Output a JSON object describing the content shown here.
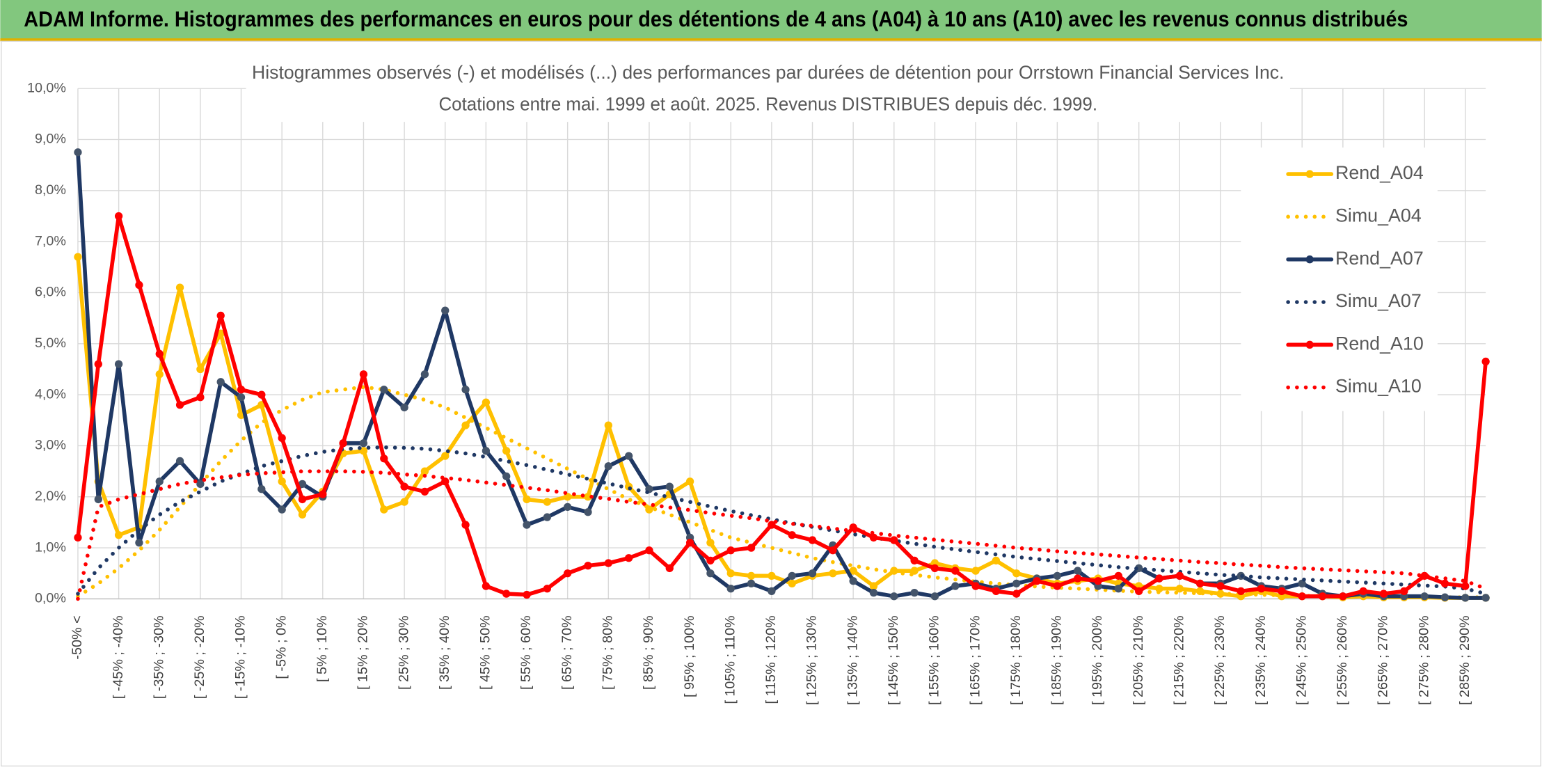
{
  "header": {
    "title": "ADAM Informe. Histogrammes des performances en euros pour des détentions de 4 ans (A04) à 10 ans (A10) avec les revenus connus distribués"
  },
  "chart_data": {
    "type": "line",
    "title": "Histogrammes observés (-) et modélisés (...) des performances par durées de détention pour Orrstown Financial Services Inc.",
    "subtitle": "Cotations entre mai. 1999 et août. 2025. Revenus DISTRIBUES depuis déc. 1999.",
    "categories": [
      "-50% <",
      null,
      "[ -45% ; -40%",
      null,
      "[ -35% ; -30%",
      null,
      "[ -25% ; -20%",
      null,
      "[ -15% ; -10%",
      null,
      "[ -5% ; 0%",
      null,
      "[ 5% ; 10%",
      null,
      "[ 15% ; 20%",
      null,
      "[ 25% ; 30%",
      null,
      "[ 35% ; 40%",
      null,
      "[ 45% ; 50%",
      null,
      "[ 55% ; 60%",
      null,
      "[ 65% ; 70%",
      null,
      "[ 75% ; 80%",
      null,
      "[ 85% ; 90%",
      null,
      "[ 95% ; 100%",
      null,
      "[ 105% ; 110%",
      null,
      "[ 115% ; 120%",
      null,
      "[ 125% ; 130%",
      null,
      "[ 135% ; 140%",
      null,
      "[ 145% ; 150%",
      null,
      "[ 155% ; 160%",
      null,
      "[ 165% ; 170%",
      null,
      "[ 175% ; 180%",
      null,
      "[ 185% ; 190%",
      null,
      "[ 195% ; 200%",
      null,
      "[ 205% ; 210%",
      null,
      "[ 215% ; 220%",
      null,
      "[ 225% ; 230%",
      null,
      "[ 235% ; 240%",
      null,
      "[ 245% ; 250%",
      null,
      "[ 255% ; 260%",
      null,
      "[ 265% ; 270%",
      null,
      "[ 275% ; 280%",
      null,
      "[ 285% ; 290%",
      null
    ],
    "series": [
      {
        "name": "Rend_A04",
        "color": "#FFC000",
        "style": "solid",
        "values": [
          6.7,
          2.3,
          1.25,
          1.4,
          4.4,
          6.1,
          4.5,
          5.2,
          3.6,
          3.8,
          2.3,
          1.65,
          2.1,
          2.85,
          2.9,
          1.75,
          1.9,
          2.5,
          2.8,
          3.4,
          3.85,
          2.9,
          1.95,
          1.9,
          2.0,
          2.0,
          3.4,
          2.2,
          1.75,
          2.05,
          2.3,
          1.1,
          0.5,
          0.45,
          0.45,
          0.3,
          0.45,
          0.5,
          0.55,
          0.25,
          0.55,
          0.55,
          0.7,
          0.6,
          0.55,
          0.75,
          0.5,
          0.4,
          0.3,
          0.35,
          0.4,
          0.3,
          0.25,
          0.2,
          0.2,
          0.15,
          0.1,
          0.05,
          0.15,
          0.05,
          0.05,
          0.05,
          0.03,
          0.05,
          0.03,
          0.03,
          0.03,
          0.02,
          0.02,
          0.02
        ]
      },
      {
        "name": "Simu_A04",
        "color": "#FFC000",
        "style": "dotted",
        "values": [
          0.05,
          0.3,
          0.6,
          0.95,
          1.35,
          1.8,
          2.25,
          2.7,
          3.1,
          3.45,
          3.7,
          3.9,
          4.05,
          4.1,
          4.15,
          4.1,
          4.0,
          3.9,
          3.75,
          3.55,
          3.35,
          3.15,
          2.95,
          2.75,
          2.55,
          2.35,
          2.15,
          1.95,
          1.8,
          1.65,
          1.5,
          1.35,
          1.2,
          1.1,
          1.0,
          0.9,
          0.8,
          0.72,
          0.65,
          0.58,
          0.52,
          0.47,
          0.42,
          0.38,
          0.34,
          0.3,
          0.27,
          0.24,
          0.22,
          0.2,
          0.18,
          0.16,
          0.14,
          0.13,
          0.12,
          0.11,
          0.1,
          0.09,
          0.08,
          0.07,
          0.06,
          0.06,
          0.05,
          0.05,
          0.04,
          0.04,
          0.04,
          0.03,
          0.03,
          0.03
        ]
      },
      {
        "name": "Rend_A07",
        "color": "#1F3864",
        "style": "solid",
        "values": [
          8.75,
          1.95,
          4.6,
          1.1,
          2.3,
          2.7,
          2.25,
          4.25,
          3.95,
          2.15,
          1.75,
          2.25,
          2.0,
          3.05,
          3.05,
          4.1,
          3.75,
          4.4,
          5.65,
          4.1,
          2.9,
          2.4,
          1.45,
          1.6,
          1.8,
          1.7,
          2.6,
          2.8,
          2.15,
          2.2,
          1.2,
          0.5,
          0.2,
          0.3,
          0.15,
          0.45,
          0.5,
          1.05,
          0.35,
          0.12,
          0.05,
          0.12,
          0.05,
          0.25,
          0.3,
          0.2,
          0.3,
          0.4,
          0.45,
          0.55,
          0.25,
          0.2,
          0.6,
          0.4,
          0.45,
          0.3,
          0.3,
          0.45,
          0.25,
          0.2,
          0.3,
          0.1,
          0.05,
          0.1,
          0.05,
          0.05,
          0.05,
          0.03,
          0.02,
          0.02
        ]
      },
      {
        "name": "Simu_A07",
        "color": "#1F3864",
        "style": "dotted",
        "values": [
          0.1,
          0.6,
          1.0,
          1.35,
          1.65,
          1.9,
          2.1,
          2.3,
          2.45,
          2.6,
          2.7,
          2.8,
          2.88,
          2.93,
          2.96,
          2.97,
          2.96,
          2.94,
          2.9,
          2.85,
          2.78,
          2.7,
          2.62,
          2.53,
          2.44,
          2.35,
          2.26,
          2.17,
          2.08,
          1.99,
          1.9,
          1.81,
          1.72,
          1.64,
          1.56,
          1.48,
          1.41,
          1.34,
          1.27,
          1.2,
          1.14,
          1.08,
          1.02,
          0.97,
          0.92,
          0.87,
          0.82,
          0.78,
          0.74,
          0.7,
          0.66,
          0.62,
          0.59,
          0.56,
          0.53,
          0.5,
          0.47,
          0.45,
          0.42,
          0.4,
          0.38,
          0.36,
          0.34,
          0.32,
          0.3,
          0.28,
          0.26,
          0.24,
          0.2,
          0.1
        ]
      },
      {
        "name": "Rend_A10",
        "color": "#FF0000",
        "style": "solid",
        "values": [
          1.2,
          4.6,
          7.5,
          6.15,
          4.8,
          3.8,
          3.95,
          5.55,
          4.1,
          4.0,
          3.15,
          1.95,
          2.05,
          3.05,
          4.4,
          2.75,
          2.2,
          2.1,
          2.3,
          1.45,
          0.25,
          0.1,
          0.08,
          0.2,
          0.5,
          0.65,
          0.7,
          0.8,
          0.95,
          0.6,
          1.1,
          0.75,
          0.95,
          1.0,
          1.45,
          1.25,
          1.15,
          0.95,
          1.4,
          1.2,
          1.15,
          0.75,
          0.6,
          0.55,
          0.25,
          0.15,
          0.1,
          0.35,
          0.25,
          0.4,
          0.35,
          0.45,
          0.15,
          0.4,
          0.45,
          0.3,
          0.25,
          0.15,
          0.2,
          0.15,
          0.05,
          0.05,
          0.05,
          0.15,
          0.1,
          0.15,
          0.45,
          0.3,
          0.25,
          4.65
        ]
      },
      {
        "name": "Simu_A10",
        "color": "#FF0000",
        "style": "dotted",
        "values": [
          0.0,
          1.8,
          1.95,
          2.05,
          2.15,
          2.25,
          2.32,
          2.38,
          2.43,
          2.46,
          2.48,
          2.5,
          2.5,
          2.5,
          2.49,
          2.47,
          2.44,
          2.41,
          2.37,
          2.33,
          2.28,
          2.23,
          2.18,
          2.13,
          2.07,
          2.01,
          1.96,
          1.9,
          1.85,
          1.79,
          1.74,
          1.68,
          1.63,
          1.58,
          1.52,
          1.47,
          1.43,
          1.38,
          1.33,
          1.29,
          1.24,
          1.2,
          1.16,
          1.12,
          1.08,
          1.04,
          1.0,
          0.97,
          0.93,
          0.9,
          0.87,
          0.84,
          0.81,
          0.78,
          0.75,
          0.72,
          0.7,
          0.67,
          0.65,
          0.62,
          0.6,
          0.58,
          0.56,
          0.54,
          0.52,
          0.5,
          0.45,
          0.4,
          0.35,
          0.2
        ]
      }
    ],
    "ylim": [
      0,
      10
    ],
    "yticks": [
      {
        "value": 0,
        "label": "0,0%"
      },
      {
        "value": 1,
        "label": "1,0%"
      },
      {
        "value": 2,
        "label": "2,0%"
      },
      {
        "value": 3,
        "label": "3,0%"
      },
      {
        "value": 4,
        "label": "4,0%"
      },
      {
        "value": 5,
        "label": "5,0%"
      },
      {
        "value": 6,
        "label": "6,0%"
      },
      {
        "value": 7,
        "label": "7,0%"
      },
      {
        "value": 8,
        "label": "8,0%"
      },
      {
        "value": 9,
        "label": "9,0%"
      },
      {
        "value": 10,
        "label": "10,0%"
      }
    ],
    "grid": true,
    "legend": "right"
  }
}
